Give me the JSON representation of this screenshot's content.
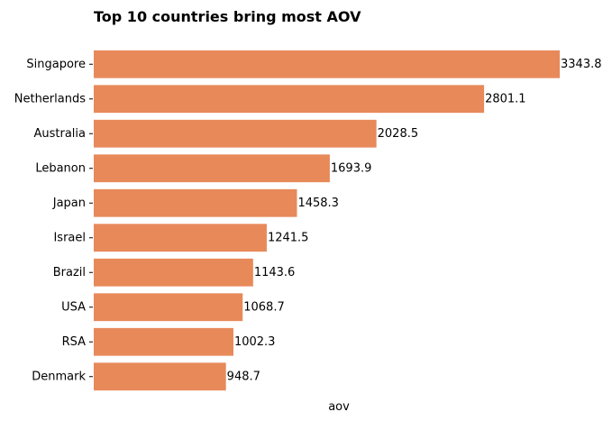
{
  "chart_data": {
    "type": "bar",
    "orientation": "horizontal",
    "title": "Top 10 countries bring most AOV",
    "xlabel": "aov",
    "ylabel": "",
    "categories": [
      "Singapore",
      "Netherlands",
      "Australia",
      "Lebanon",
      "Japan",
      "Israel",
      "Brazil",
      "USA",
      "RSA",
      "Denmark"
    ],
    "values": [
      3343.8,
      2801.1,
      2028.5,
      1693.9,
      1458.3,
      1241.5,
      1143.6,
      1068.7,
      1002.3,
      948.7
    ],
    "data_labels": [
      "3343.8",
      "2801.1",
      "2028.5",
      "1693.9",
      "1458.3",
      "1241.5",
      "1143.6",
      "1068.7",
      "1002.3",
      "948.7"
    ],
    "xlim": [
      0,
      3343.8
    ],
    "grid": false,
    "legend": "none",
    "bar_color": "#E8895A"
  }
}
